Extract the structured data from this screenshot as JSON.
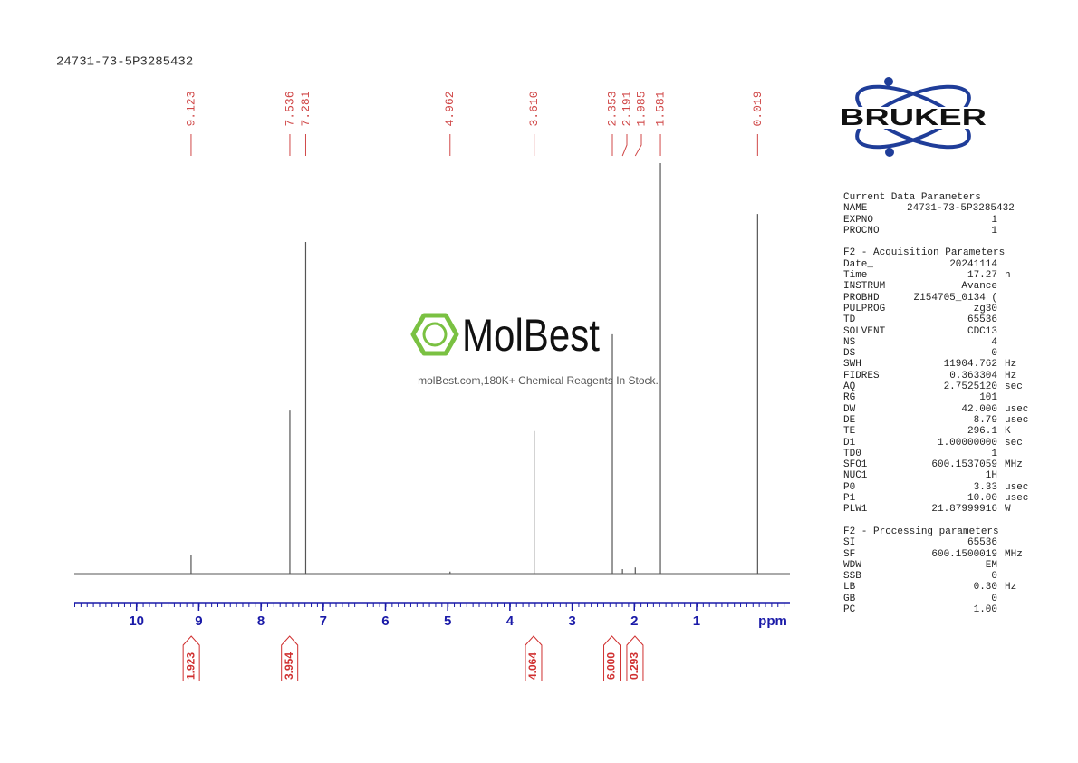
{
  "sample_name": "24731-73-5P3285432",
  "logo": "BRUKER",
  "watermark": {
    "brand": "MolBest",
    "tagline": "molBest.com,180K+ Chemical Reagents In Stock."
  },
  "chart_data": {
    "type": "nmr",
    "x_label": "ppm",
    "xlim": [
      11,
      -0.5
    ],
    "xticks": [
      10,
      9,
      8,
      7,
      6,
      5,
      4,
      3,
      2,
      1
    ],
    "ylim": [
      0,
      100
    ],
    "peaks": {
      "x": [
        9.123,
        7.536,
        7.281,
        4.962,
        3.61,
        2.353,
        2.191,
        1.985,
        1.581,
        0.019
      ],
      "peak_labels": [
        "9.123",
        "7.536",
        "7.281",
        "4.962",
        "3.610",
        "2.353",
        "2.191",
        "1.985",
        "1.581",
        "0.019"
      ],
      "values": [
        4.6,
        39.7,
        80.8,
        0.5,
        34.7,
        58.3,
        1.1,
        1.5,
        100,
        87.6
      ],
      "color": "#555555",
      "label_color": "#d04848"
    },
    "integrals": {
      "x": [
        9.12,
        7.54,
        3.62,
        2.36,
        1.99
      ],
      "values": [
        1.923,
        3.954,
        4.064,
        6,
        0.293
      ],
      "value_labels": [
        "1.923",
        "3.954",
        "4.064",
        "6.000",
        "0.293"
      ],
      "color": "#d03030"
    },
    "axis_color": "#1a1aa8"
  },
  "parameters": [
    {
      "title": "Current Data Parameters",
      "rows": [
        [
          "NAME",
          "24731-73-5P3285432"
        ],
        [
          "EXPNO",
          "1"
        ],
        [
          "PROCNO",
          "1"
        ]
      ]
    },
    {
      "title": "F2 - Acquisition Parameters",
      "rows": [
        [
          "Date_",
          "20241114"
        ],
        [
          "Time",
          "17.27",
          "h"
        ],
        [
          "INSTRUM",
          "Avance"
        ],
        [
          "PROBHD",
          "Z154705_0134 ("
        ],
        [
          "PULPROG",
          "zg30"
        ],
        [
          "TD",
          "65536"
        ],
        [
          "SOLVENT",
          "CDC13"
        ],
        [
          "NS",
          "4"
        ],
        [
          "DS",
          "0"
        ],
        [
          "SWH",
          "11904.762",
          "Hz"
        ],
        [
          "FIDRES",
          "0.363304",
          "Hz"
        ],
        [
          "AQ",
          "2.7525120",
          "sec"
        ],
        [
          "RG",
          "101"
        ],
        [
          "DW",
          "42.000",
          "usec"
        ],
        [
          "DE",
          "8.79",
          "usec"
        ],
        [
          "TE",
          "296.1",
          "K"
        ],
        [
          "D1",
          "1.00000000",
          "sec"
        ],
        [
          "TD0",
          "1"
        ],
        [
          "SFO1",
          "600.1537059",
          "MHz"
        ],
        [
          "NUC1",
          "1H"
        ],
        [
          "P0",
          "3.33",
          "usec"
        ],
        [
          "P1",
          "10.00",
          "usec"
        ],
        [
          "PLW1",
          "21.87999916",
          "W"
        ]
      ]
    },
    {
      "title": "F2 - Processing parameters",
      "rows": [
        [
          "SI",
          "65536"
        ],
        [
          "SF",
          "600.1500019",
          "MHz"
        ],
        [
          "WDW",
          "EM"
        ],
        [
          "SSB",
          "0"
        ],
        [
          "LB",
          "0.30",
          "Hz"
        ],
        [
          "GB",
          "0"
        ],
        [
          "PC",
          "1.00"
        ]
      ]
    }
  ]
}
